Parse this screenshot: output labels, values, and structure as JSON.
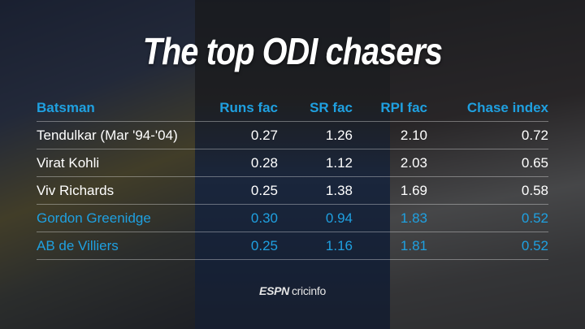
{
  "title": "The top ODI chasers",
  "table": {
    "headers": [
      "Batsman",
      "Runs fac",
      "SR fac",
      "RPI fac",
      "Chase index"
    ],
    "rows": [
      {
        "cells": [
          "Tendulkar (Mar '94-'04)",
          "0.27",
          "1.26",
          "2.10",
          "0.72"
        ],
        "highlight": false
      },
      {
        "cells": [
          "Virat Kohli",
          "0.28",
          "1.12",
          "2.03",
          "0.65"
        ],
        "highlight": false
      },
      {
        "cells": [
          "Viv Richards",
          "0.25",
          "1.38",
          "1.69",
          "0.58"
        ],
        "highlight": false
      },
      {
        "cells": [
          "Gordon Greenidge",
          "0.30",
          "0.94",
          "1.83",
          "0.52"
        ],
        "highlight": true
      },
      {
        "cells": [
          "AB de Villiers",
          "0.25",
          "1.16",
          "1.81",
          "0.52"
        ],
        "highlight": true
      }
    ]
  },
  "logo": {
    "brand": "ESPN",
    "product": "cricinfo"
  },
  "colors": {
    "accent": "#1fa0e0",
    "text": "#ffffff"
  }
}
